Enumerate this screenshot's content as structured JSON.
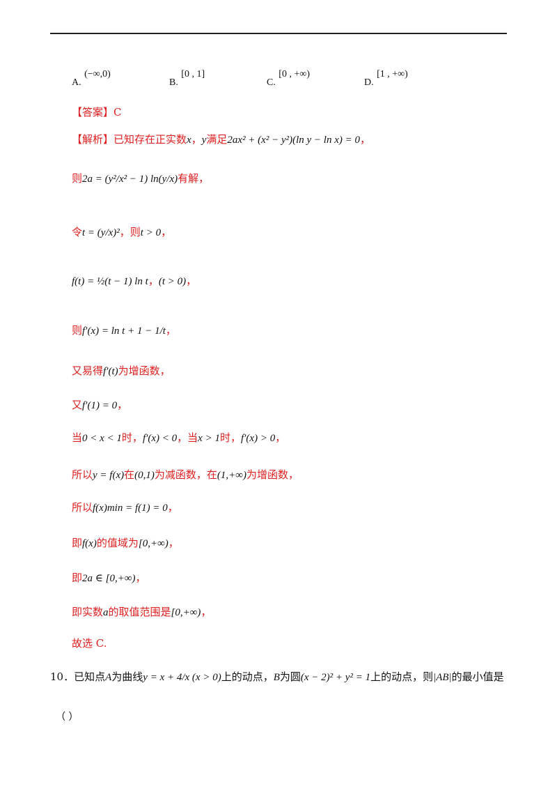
{
  "options": [
    {
      "label": "A.",
      "value": "(−∞,0)"
    },
    {
      "label": "B.",
      "value": "[0 ,  1]"
    },
    {
      "label": "C.",
      "value": "[0 ,  +∞)"
    },
    {
      "label": "D.",
      "value": "[1 ,  +∞)"
    }
  ],
  "answer": {
    "tag": "【答案】",
    "value": "C"
  },
  "analysis": {
    "tag": "【解析】",
    "l1_pre": "已知存在正实数",
    "l1_x": "x",
    "l1_comma": "，",
    "l1_y": "y",
    "l1_mid": "满足",
    "l1_math": "2ax² + (x² − y²)(ln y − ln x) = 0",
    "l1_end": "，",
    "l2_pre": "则",
    "l2_math": "2a = (y²/x² − 1) ln(y/x)",
    "l2_end": "有解，",
    "l3_pre": "令",
    "l3_math": "t = (y/x)²",
    "l3_mid": "，则",
    "l3_math2": "t > 0",
    "l3_end": "，",
    "l4_math": "f(t) = ½(t − 1) ln t",
    "l4_mid": "，",
    "l4_math2": "(t > 0)",
    "l4_end": "，",
    "l5_pre": "则",
    "l5_math": "f′(x) = ln t + 1 − 1/t",
    "l5_end": "，",
    "l6_pre": "又易得",
    "l6_math": "f′(t)",
    "l6_end": "为增函数，",
    "l7_pre": "又",
    "l7_math": "f′(1) = 0",
    "l7_end": "，",
    "l8_pre": "当",
    "l8_math": "0 < x < 1",
    "l8_mid1": "时，",
    "l8_math2": "f′(x) < 0",
    "l8_mid2": "，当",
    "l8_math3": "x > 1",
    "l8_mid3": "时，",
    "l8_math4": "f′(x) > 0",
    "l8_end": "，",
    "l9_pre": "所以",
    "l9_math": "y = f(x)",
    "l9_mid1": "在",
    "l9_math2": "(0,1)",
    "l9_mid2": "为减函数，在",
    "l9_math3": "(1,+∞)",
    "l9_end": "为增函数，",
    "l10_pre": "所以",
    "l10_math": "f(x)min = f(1) = 0",
    "l10_end": "，",
    "l11_pre": "即",
    "l11_math": "f(x)",
    "l11_mid": "的值域为",
    "l11_math2": "[0,+∞)",
    "l11_end": "，",
    "l12_pre": "即",
    "l12_math": "2a ∈ [0,+∞)",
    "l12_end": "，",
    "l13_pre": "即实数",
    "l13_math": "a",
    "l13_mid": "的取值范围是",
    "l13_math2": "[0,+∞)",
    "l13_end": "，",
    "l14": "故选 C."
  },
  "question10": {
    "num": "10．",
    "pre": "已知点",
    "A": "A",
    "mid1": "为曲线",
    "curve": "y = x + 4/x (x > 0)",
    "mid2": "上的动点，",
    "B": "B",
    "mid3": "为圆",
    "circle": "(x − 2)² + y² = 1",
    "mid4": "上的动点，则",
    "ab": "|AB|",
    "end": "的最小值是",
    "paren": "（      ）"
  }
}
